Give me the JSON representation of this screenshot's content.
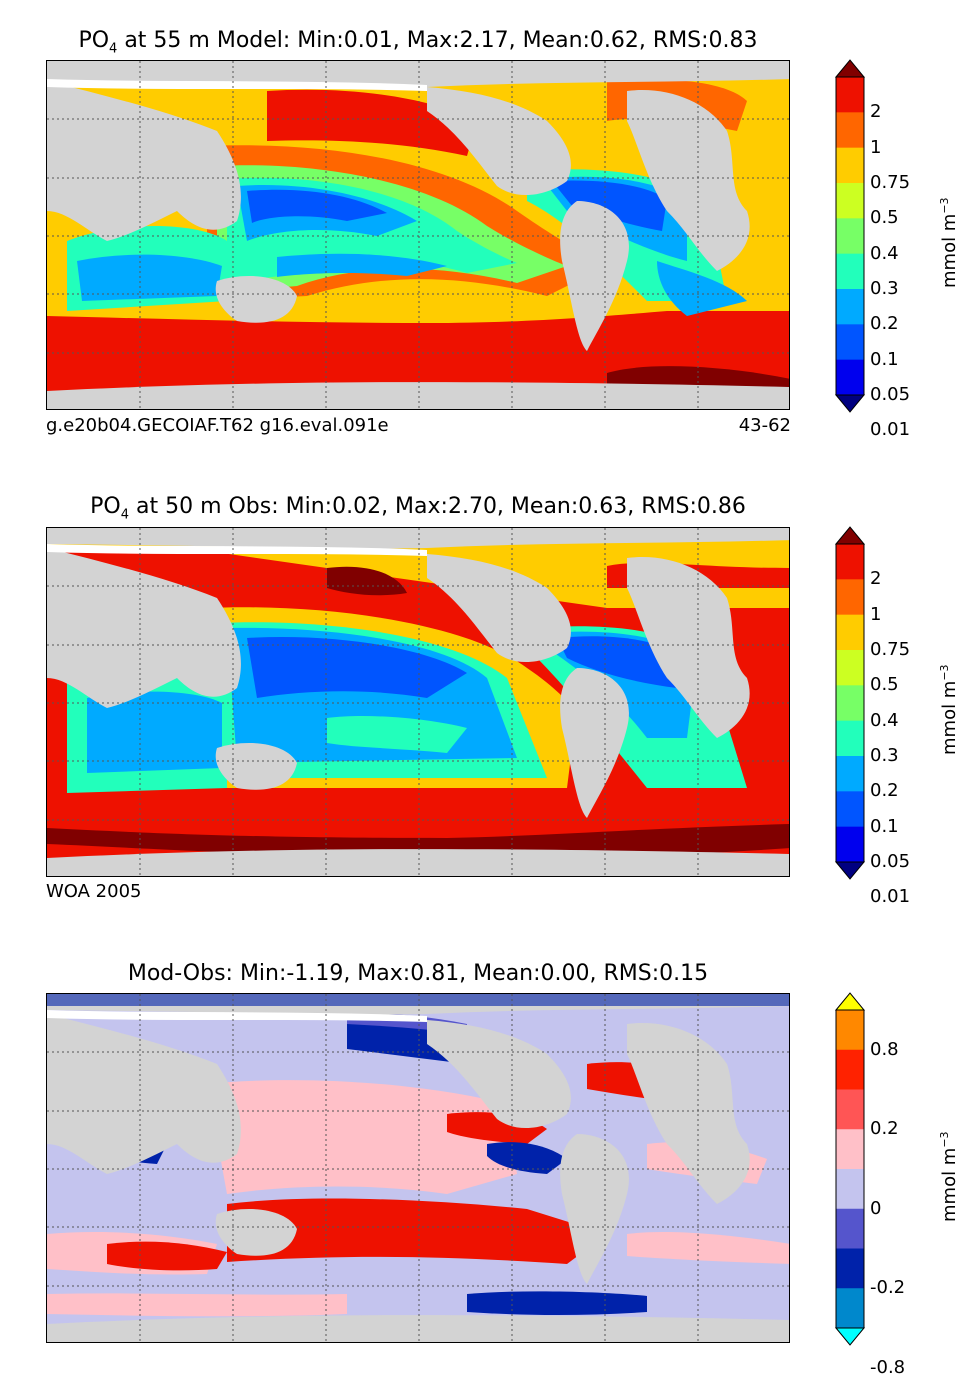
{
  "panels": [
    {
      "title_pre": "PO",
      "title_sub": "4",
      "title_post": " at 55 m Model: Min:0.01, Max:2.17, Mean:0.62, RMS:0.83",
      "footer_left": "g.e20b04.GECOIAF.T62 g16.eval.091e",
      "footer_right": "43-62",
      "colorbar": {
        "ticks": [
          "2",
          "1",
          "0.75",
          "0.5",
          "0.4",
          "0.3",
          "0.2",
          "0.1",
          "0.05",
          "0.01"
        ],
        "colors": [
          "#800000",
          "#ee1100",
          "#ff6600",
          "#ffcc00",
          "#ccff22",
          "#77ff66",
          "#22ffbb",
          "#00aaff",
          "#0055ff",
          "#0000ee",
          "#000080"
        ],
        "unit": "mmol m",
        "unit_sup": "−3"
      }
    },
    {
      "title_pre": "PO",
      "title_sub": "4",
      "title_post": " at 50 m Obs: Min:0.02, Max:2.70, Mean:0.63, RMS:0.86",
      "footer_left": "WOA 2005",
      "footer_right": "",
      "colorbar": {
        "ticks": [
          "2",
          "1",
          "0.75",
          "0.5",
          "0.4",
          "0.3",
          "0.2",
          "0.1",
          "0.05",
          "0.01"
        ],
        "colors": [
          "#800000",
          "#ee1100",
          "#ff6600",
          "#ffcc00",
          "#ccff22",
          "#77ff66",
          "#22ffbb",
          "#00aaff",
          "#0055ff",
          "#0000ee",
          "#000080"
        ],
        "unit": "mmol m",
        "unit_sup": "−3"
      }
    },
    {
      "title_pre": "",
      "title_sub": "",
      "title_post": "Mod-Obs: Min:-1.19, Max:0.81, Mean:0.00, RMS:0.15",
      "footer_left": "",
      "footer_right": "",
      "colorbar": {
        "ticks": [
          "0.8",
          "0.2",
          "0",
          "-0.2",
          "-0.8"
        ],
        "colors": [
          "#ffff00",
          "#ff8800",
          "#ff2200",
          "#ff5555",
          "#ffc0c8",
          "#c4c4ee",
          "#5555cc",
          "#0022aa",
          "#0088cc",
          "#00ffff"
        ],
        "unit": "mmol m",
        "unit_sup": "−3"
      }
    }
  ],
  "chart_data": [
    {
      "type": "heatmap",
      "title": "PO4 at 55 m Model: Min:0.01, Max:2.17, Mean:0.62, RMS:0.83",
      "source": "g.e20b04.GECOIAF.T62 g16.eval.091e",
      "years": "43-62",
      "stats": {
        "min": 0.01,
        "max": 2.17,
        "mean": 0.62,
        "rms": 0.83
      },
      "levels": [
        0.01,
        0.05,
        0.1,
        0.2,
        0.3,
        0.4,
        0.5,
        0.75,
        1,
        2
      ],
      "colorbar_label": "mmol m−3"
    },
    {
      "type": "heatmap",
      "title": "PO4 at 50 m Obs: Min:0.02, Max:2.70, Mean:0.63, RMS:0.86",
      "source": "WOA 2005",
      "stats": {
        "min": 0.02,
        "max": 2.7,
        "mean": 0.63,
        "rms": 0.86
      },
      "levels": [
        0.01,
        0.05,
        0.1,
        0.2,
        0.3,
        0.4,
        0.5,
        0.75,
        1,
        2
      ],
      "colorbar_label": "mmol m−3"
    },
    {
      "type": "heatmap",
      "title": "Mod-Obs: Min:-1.19, Max:0.81, Mean:0.00, RMS:0.15",
      "stats": {
        "min": -1.19,
        "max": 0.81,
        "mean": 0.0,
        "rms": 0.15
      },
      "levels": [
        -0.8,
        -0.2,
        0,
        0.2,
        0.8
      ],
      "colorbar_label": "mmol m−3"
    }
  ]
}
